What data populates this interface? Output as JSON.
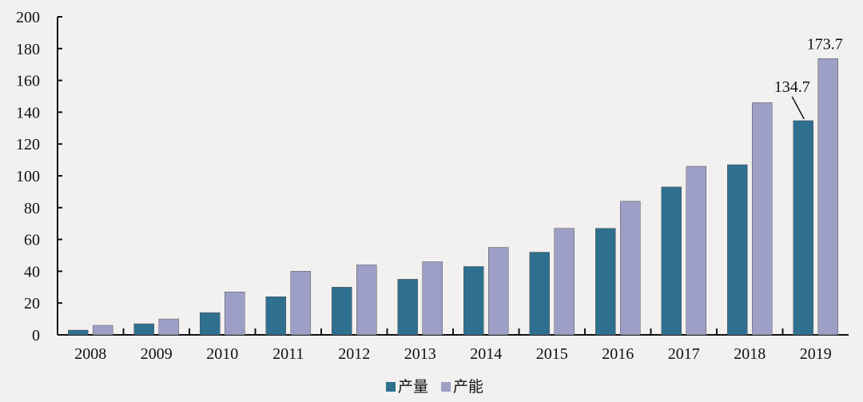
{
  "chart_data": {
    "type": "bar",
    "categories": [
      "2008",
      "2009",
      "2010",
      "2011",
      "2012",
      "2013",
      "2014",
      "2015",
      "2016",
      "2017",
      "2018",
      "2019"
    ],
    "series": [
      {
        "name": "产量",
        "color": "#2f6f90",
        "values": [
          3,
          7,
          14,
          24,
          30,
          35,
          43,
          52,
          67,
          93,
          107,
          134.7
        ]
      },
      {
        "name": "产能",
        "color": "#9d9fc6",
        "values": [
          6,
          10,
          27,
          40,
          44,
          46,
          55,
          67,
          84,
          106,
          146,
          173.7
        ]
      }
    ],
    "data_labels": [
      {
        "series": 0,
        "category": "2019",
        "text": "134.7"
      },
      {
        "series": 1,
        "category": "2019",
        "text": "173.7"
      }
    ],
    "yticks": [
      "0",
      "20",
      "40",
      "60",
      "80",
      "100",
      "120",
      "140",
      "160",
      "180",
      "200"
    ],
    "ylim": [
      0,
      200
    ],
    "title": "",
    "xlabel": "",
    "ylabel": "",
    "grid": false,
    "legend_position": "bottom"
  }
}
